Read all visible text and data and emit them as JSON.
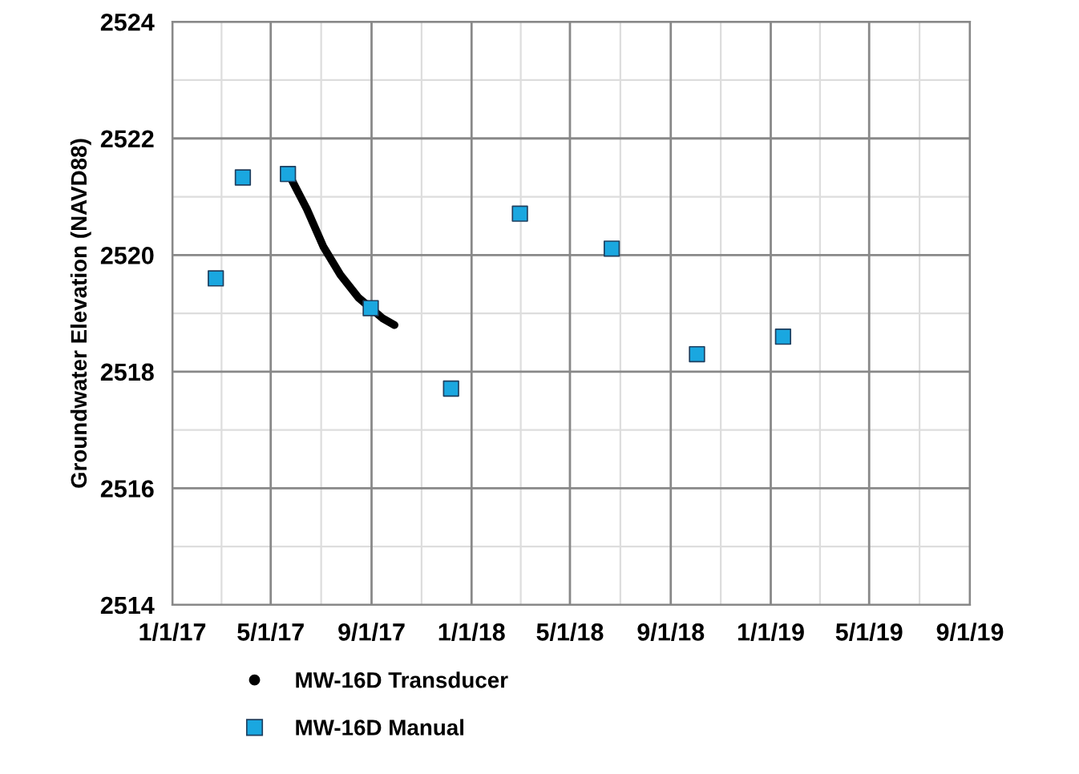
{
  "chart_data": {
    "type": "scatter",
    "ylabel": "Groundwater Elevation (NAVD88)",
    "series": [
      {
        "name": "MW-16D Transducer",
        "type": "line",
        "color": "#000000",
        "marker": "none",
        "x": [
          "2017-05-22",
          "2017-05-27",
          "2017-06-14",
          "2017-07-04",
          "2017-07-25",
          "2017-08-16",
          "2017-08-31",
          "2017-09-14",
          "2017-09-29"
        ],
        "values": [
          2521.4,
          2521.28,
          2520.79,
          2520.15,
          2519.66,
          2519.27,
          2519.09,
          2518.92,
          2518.8
        ]
      },
      {
        "name": "MW-16D Manual",
        "color": "#1aa7e0",
        "marker": "square",
        "x": [
          "2017-02-23",
          "2017-03-28",
          "2017-05-22",
          "2017-08-31",
          "2017-12-07",
          "2018-03-01",
          "2018-06-21",
          "2018-10-03",
          "2019-01-16"
        ],
        "values": [
          2519.6,
          2521.33,
          2521.39,
          2519.09,
          2517.71,
          2520.71,
          2520.11,
          2518.3,
          2518.6
        ]
      }
    ],
    "xlim": [
      "2017-01-01",
      "2019-09-01"
    ],
    "xticks": [
      {
        "value": "2017-01-01",
        "label": "1/1/17"
      },
      {
        "value": "2017-05-01",
        "label": "5/1/17"
      },
      {
        "value": "2017-09-01",
        "label": "9/1/17"
      },
      {
        "value": "2018-01-01",
        "label": "1/1/18"
      },
      {
        "value": "2018-05-01",
        "label": "5/1/18"
      },
      {
        "value": "2018-09-01",
        "label": "9/1/18"
      },
      {
        "value": "2019-01-01",
        "label": "1/1/19"
      },
      {
        "value": "2019-05-01",
        "label": "5/1/19"
      },
      {
        "value": "2019-09-01",
        "label": "9/1/19"
      }
    ],
    "ylim": [
      2514,
      2524
    ],
    "yticks": [
      2514,
      2516,
      2518,
      2520,
      2522,
      2524
    ],
    "grid": true,
    "legend": "bottom"
  }
}
